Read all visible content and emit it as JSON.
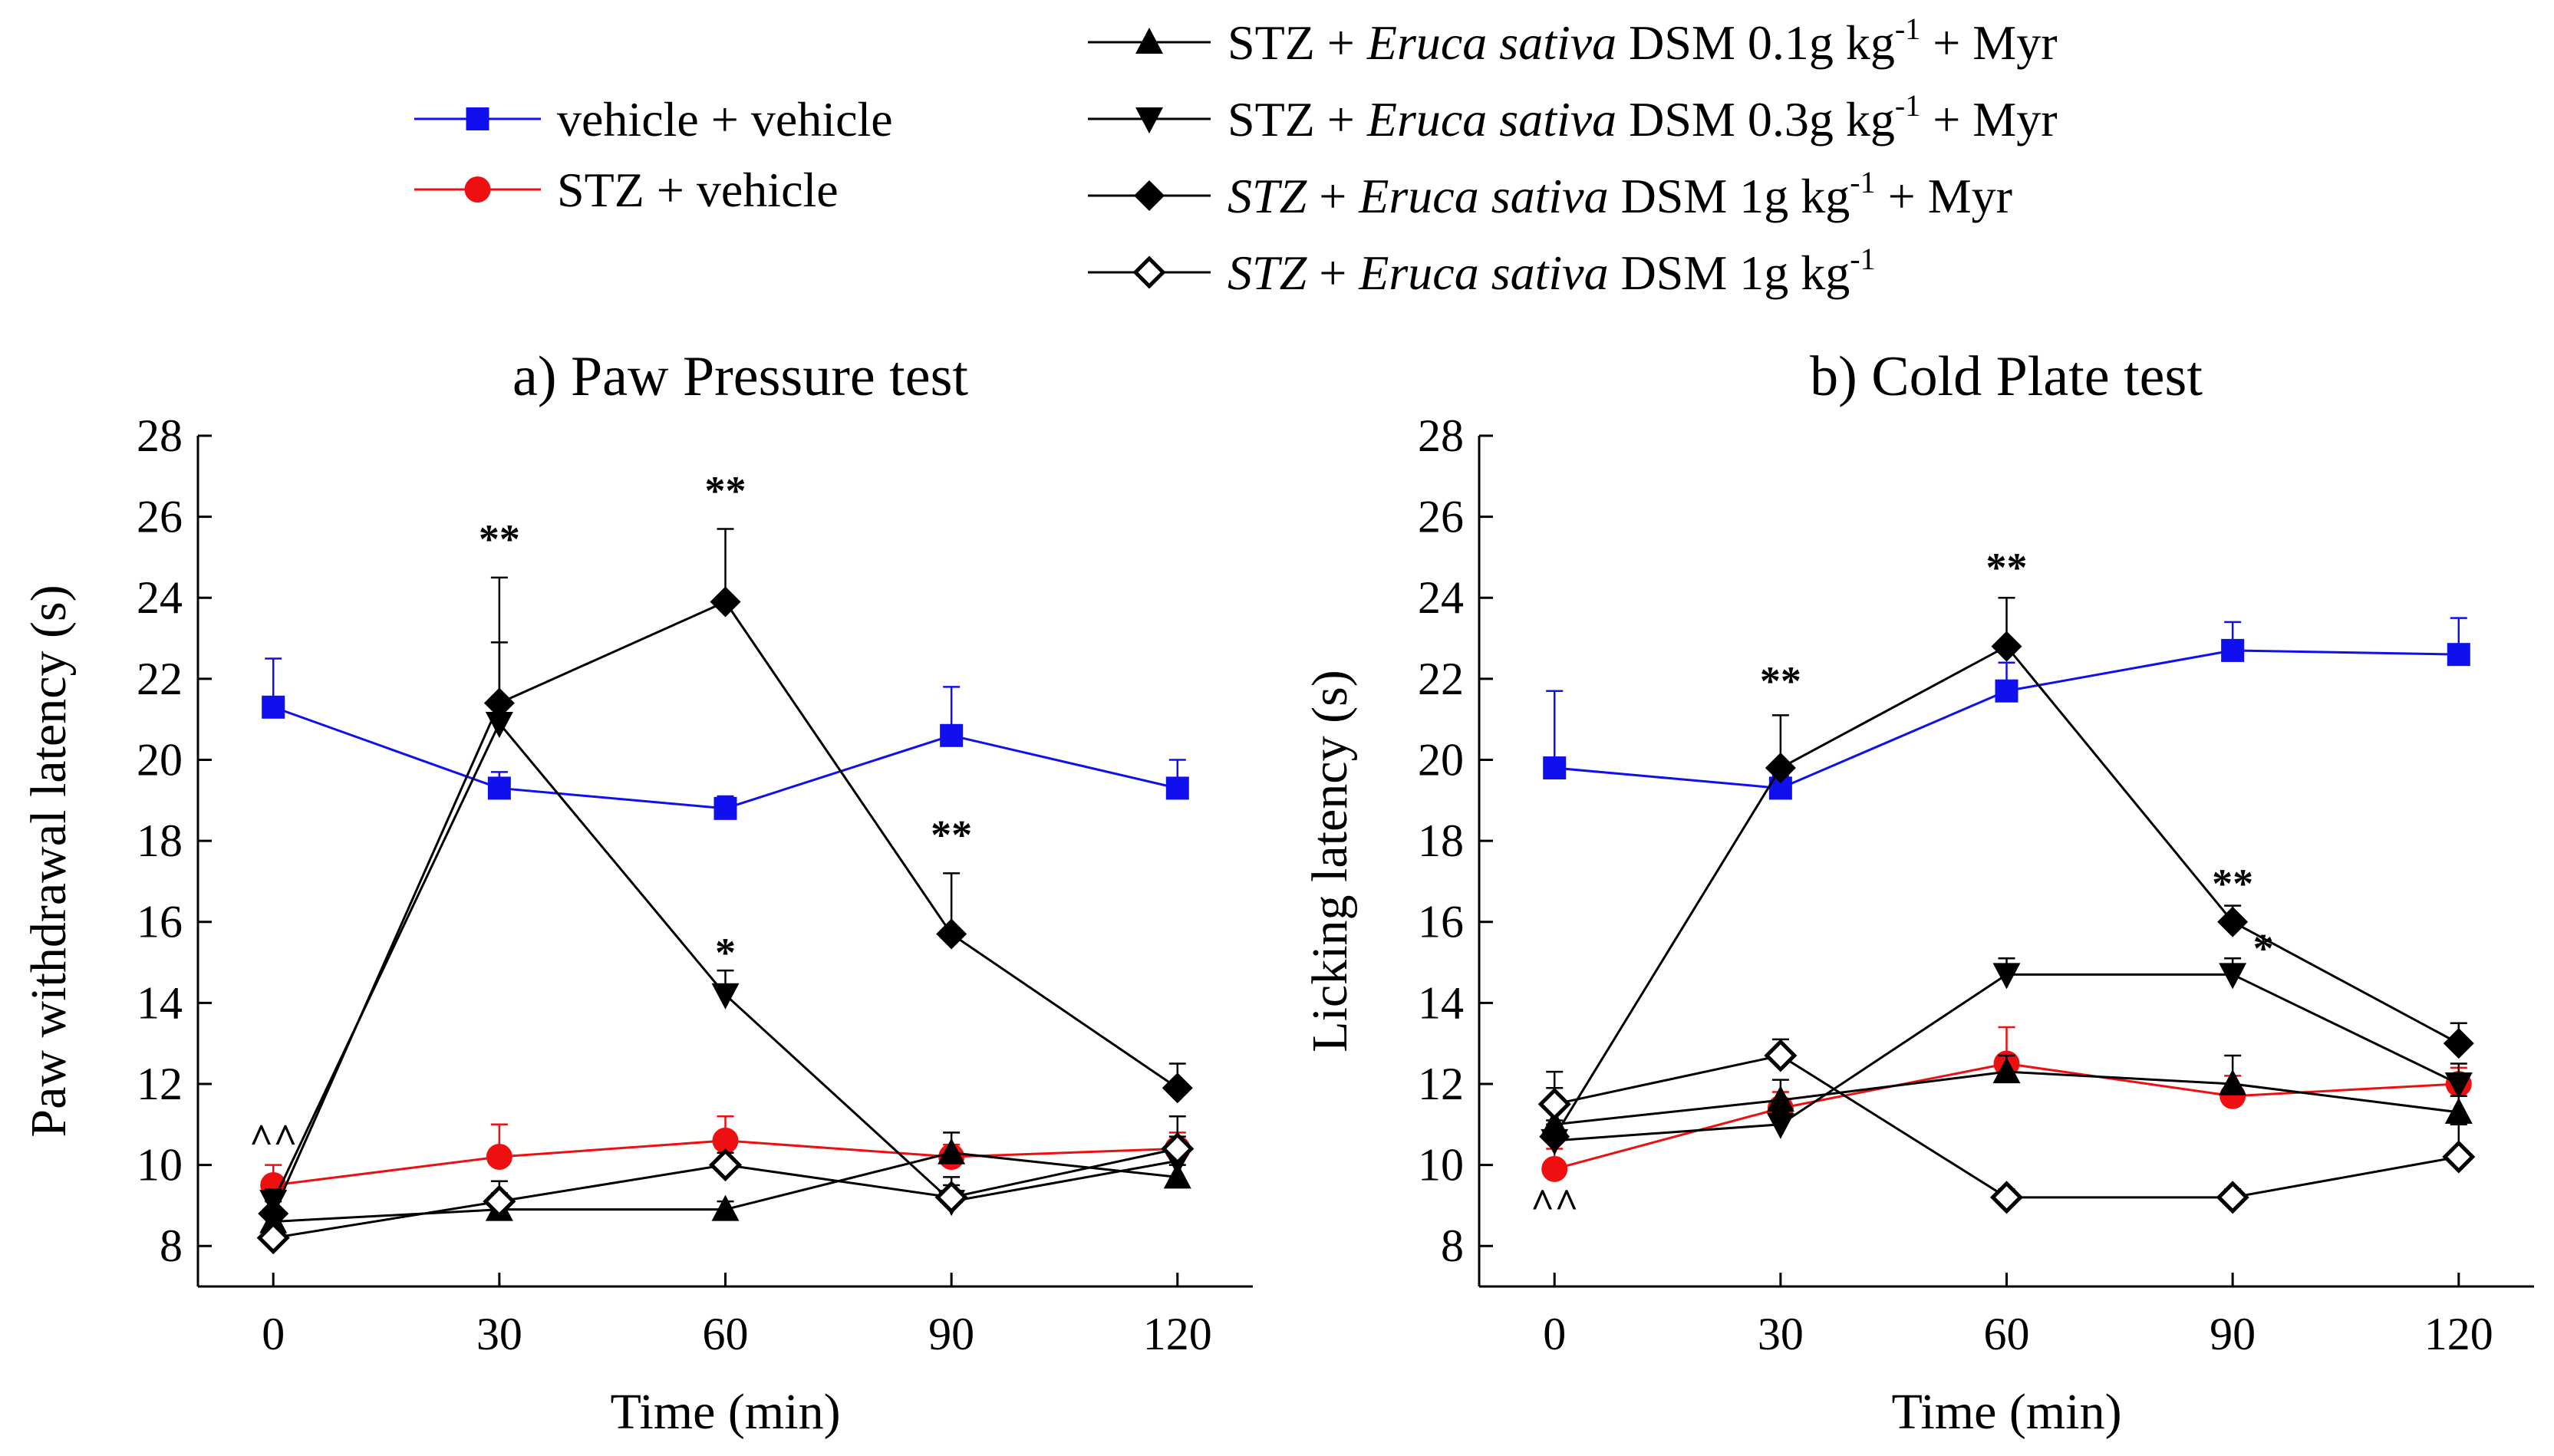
{
  "legend": {
    "left": [
      {
        "key": "vv",
        "parts": [
          {
            "t": "vehicle + vehicle"
          }
        ]
      },
      {
        "key": "sv",
        "parts": [
          {
            "t": "STZ + vehicle"
          }
        ]
      }
    ],
    "right": [
      {
        "key": "a01",
        "parts": [
          {
            "t": "STZ + "
          },
          {
            "t": "Eruca sativa",
            "i": true
          },
          {
            "t": " DSM 0.1g kg"
          },
          {
            "t": "-1",
            "sup": true
          },
          {
            "t": " + Myr"
          }
        ]
      },
      {
        "key": "a03",
        "parts": [
          {
            "t": "STZ + "
          },
          {
            "t": "Eruca sativa",
            "i": true
          },
          {
            "t": " DSM 0.3g kg"
          },
          {
            "t": "-1",
            "sup": true
          },
          {
            "t": " + Myr"
          }
        ]
      },
      {
        "key": "a1m",
        "parts": [
          {
            "t": "STZ",
            "i": true
          },
          {
            "t": " + "
          },
          {
            "t": "Eruca sativa",
            "i": true
          },
          {
            "t": " DSM 1g kg"
          },
          {
            "t": "-1",
            "sup": true
          },
          {
            "t": " + Myr"
          }
        ]
      },
      {
        "key": "a1",
        "parts": [
          {
            "t": "STZ",
            "i": true
          },
          {
            "t": " + "
          },
          {
            "t": "Eruca sativa",
            "i": true
          },
          {
            "t": " DSM 1g kg"
          },
          {
            "t": "-1",
            "sup": true
          }
        ]
      }
    ]
  },
  "styles": {
    "vv": {
      "color": "#1010ee",
      "marker": "square"
    },
    "sv": {
      "color": "#ee1010",
      "marker": "circle"
    },
    "a01": {
      "color": "#000000",
      "marker": "triangle-up"
    },
    "a03": {
      "color": "#000000",
      "marker": "triangle-down"
    },
    "a1m": {
      "color": "#000000",
      "marker": "diamond"
    },
    "a1": {
      "color": "#000000",
      "marker": "diamond-open"
    }
  },
  "chart_data": [
    {
      "type": "line",
      "title": "a) Paw Pressure test",
      "xlabel": "Time (min)",
      "ylabel": "Paw withdrawal latency (s)",
      "x": [
        0,
        30,
        60,
        90,
        120
      ],
      "xticks": [
        "0",
        "30",
        "60",
        "90",
        "120"
      ],
      "yticks": [
        "8",
        "10",
        "12",
        "14",
        "16",
        "18",
        "20",
        "22",
        "24",
        "26",
        "28"
      ],
      "xlim": [
        -10,
        130
      ],
      "ylim": [
        7,
        28
      ],
      "series": [
        {
          "key": "vv",
          "values": [
            21.3,
            19.3,
            18.8,
            20.6,
            19.3
          ],
          "err": [
            1.2,
            0.4,
            0.3,
            1.2,
            0.7
          ]
        },
        {
          "key": "sv",
          "values": [
            9.5,
            10.2,
            10.6,
            10.2,
            10.4
          ],
          "err": [
            0.5,
            0.8,
            0.6,
            0.3,
            0.4
          ]
        },
        {
          "key": "a01",
          "values": [
            8.6,
            8.9,
            8.9,
            10.3,
            9.7
          ],
          "err": [
            0.3,
            0.4,
            0.2,
            0.5,
            0.3
          ]
        },
        {
          "key": "a03",
          "values": [
            9.1,
            20.9,
            14.2,
            9.1,
            10.1
          ],
          "err": [
            0.3,
            2.0,
            0.6,
            0.4,
            0.6
          ]
        },
        {
          "key": "a1m",
          "values": [
            8.8,
            21.4,
            23.9,
            15.7,
            11.9
          ],
          "err": [
            0.3,
            3.1,
            1.8,
            1.5,
            0.6
          ]
        },
        {
          "key": "a1",
          "values": [
            8.2,
            9.1,
            10.0,
            9.2,
            10.4
          ],
          "err": [
            0.5,
            0.5,
            0.3,
            0.5,
            0.8
          ]
        }
      ],
      "annotations": [
        {
          "text": "^^",
          "x": 0,
          "y": 10.3,
          "dx": 0
        },
        {
          "text": "**",
          "x": 30,
          "y": 25.1,
          "dx": 0
        },
        {
          "text": "**",
          "x": 60,
          "y": 26.3,
          "dx": 0
        },
        {
          "text": "*",
          "x": 60,
          "y": 14.9,
          "dx": 0
        },
        {
          "text": "**",
          "x": 90,
          "y": 17.8,
          "dx": 0
        }
      ]
    },
    {
      "type": "line",
      "title": "b) Cold Plate test",
      "xlabel": "Time (min)",
      "ylabel": "Licking latency (s)",
      "x": [
        0,
        30,
        60,
        90,
        120
      ],
      "xticks": [
        "0",
        "30",
        "60",
        "90",
        "120"
      ],
      "yticks": [
        "8",
        "10",
        "12",
        "14",
        "16",
        "18",
        "20",
        "22",
        "24",
        "26",
        "28"
      ],
      "xlim": [
        -10,
        130
      ],
      "ylim": [
        7,
        28
      ],
      "series": [
        {
          "key": "vv",
          "values": [
            19.8,
            19.3,
            21.7,
            22.7,
            22.6
          ],
          "err": [
            1.9,
            0.3,
            0.7,
            0.7,
            0.9
          ]
        },
        {
          "key": "sv",
          "values": [
            9.9,
            11.4,
            12.5,
            11.7,
            12.0
          ],
          "err": [
            0.5,
            0.4,
            0.9,
            0.5,
            0.4
          ]
        },
        {
          "key": "a01",
          "values": [
            11.0,
            11.6,
            12.3,
            12.0,
            11.3
          ],
          "err": [
            0.9,
            0.5,
            0.4,
            0.7,
            0.4
          ]
        },
        {
          "key": "a03",
          "values": [
            10.6,
            11.0,
            14.7,
            14.7,
            12.0
          ],
          "err": [
            0.4,
            0.3,
            0.4,
            0.4,
            0.5
          ]
        },
        {
          "key": "a1m",
          "values": [
            10.7,
            19.8,
            22.8,
            16.0,
            13.0
          ],
          "err": [
            0.4,
            1.3,
            1.2,
            0.4,
            0.5
          ]
        },
        {
          "key": "a1",
          "values": [
            11.5,
            12.7,
            9.2,
            9.2,
            10.2
          ],
          "err": [
            0.8,
            0.4,
            0.2,
            0.2,
            0.8
          ]
        }
      ],
      "annotations": [
        {
          "text": "^^",
          "x": 0,
          "y": 8.7,
          "dx": 0
        },
        {
          "text": "**",
          "x": 30,
          "y": 21.6,
          "dx": 0
        },
        {
          "text": "**",
          "x": 60,
          "y": 24.4,
          "dx": 0
        },
        {
          "text": "**",
          "x": 90,
          "y": 16.6,
          "dx": 0
        },
        {
          "text": "*",
          "x": 90,
          "y": 15.0,
          "dx": 1
        }
      ]
    }
  ]
}
